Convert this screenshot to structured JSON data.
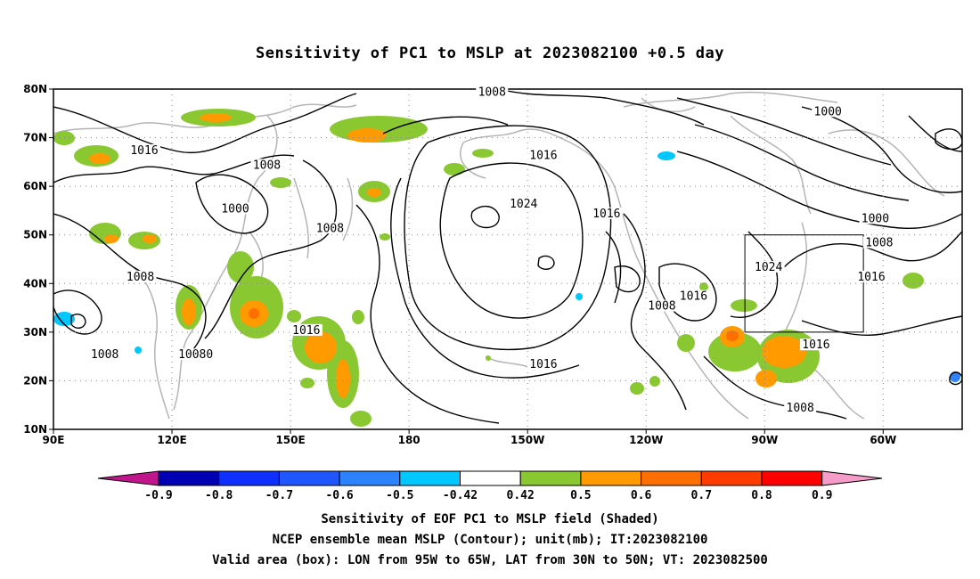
{
  "title": "Sensitivity of PC1 to MSLP at 2023082100 +0.5 day",
  "map": {
    "lat_ticks": [
      {
        "value": 80,
        "label": "80N"
      },
      {
        "value": 70,
        "label": "70N"
      },
      {
        "value": 60,
        "label": "60N"
      },
      {
        "value": 50,
        "label": "50N"
      },
      {
        "value": 40,
        "label": "40N"
      },
      {
        "value": 30,
        "label": "30N"
      },
      {
        "value": 20,
        "label": "20N"
      },
      {
        "value": 10,
        "label": "10N"
      }
    ],
    "lon_ticks": [
      {
        "value": 90,
        "label": "90E"
      },
      {
        "value": 120,
        "label": "120E"
      },
      {
        "value": 150,
        "label": "150E"
      },
      {
        "value": 180,
        "label": "180"
      },
      {
        "value": 210,
        "label": "150W"
      },
      {
        "value": 240,
        "label": "120W"
      },
      {
        "value": 270,
        "label": "90W"
      },
      {
        "value": 300,
        "label": "60W"
      }
    ],
    "lon_range": [
      90,
      320
    ],
    "lat_range": [
      10,
      80
    ],
    "grid": "dotted",
    "valid_box": {
      "lon_min": 265,
      "lon_max": 295,
      "lat_min": 30,
      "lat_max": 50
    },
    "contour_labels": [
      {
        "text": "1008",
        "lon": 201,
        "lat": 79
      },
      {
        "text": "1000",
        "lon": 286,
        "lat": 75
      },
      {
        "text": "1016",
        "lon": 113,
        "lat": 67
      },
      {
        "text": "1008",
        "lon": 144,
        "lat": 64
      },
      {
        "text": "1016",
        "lon": 214,
        "lat": 66
      },
      {
        "text": "1024",
        "lon": 209,
        "lat": 56
      },
      {
        "text": "1016",
        "lon": 230,
        "lat": 54
      },
      {
        "text": "1000",
        "lon": 136,
        "lat": 55
      },
      {
        "text": "1000",
        "lon": 298,
        "lat": 53
      },
      {
        "text": "1008",
        "lon": 160,
        "lat": 51
      },
      {
        "text": "1008",
        "lon": 299,
        "lat": 48
      },
      {
        "text": "1024",
        "lon": 271,
        "lat": 43
      },
      {
        "text": "1016",
        "lon": 297,
        "lat": 41
      },
      {
        "text": "1008",
        "lon": 112,
        "lat": 41
      },
      {
        "text": "1016",
        "lon": 252,
        "lat": 37
      },
      {
        "text": "1008",
        "lon": 244,
        "lat": 35
      },
      {
        "text": "1016",
        "lon": 154,
        "lat": 30
      },
      {
        "text": "1008",
        "lon": 103,
        "lat": 25
      },
      {
        "text": "10080",
        "lon": 126,
        "lat": 25
      },
      {
        "text": "1016",
        "lon": 283,
        "lat": 27
      },
      {
        "text": "1016",
        "lon": 214,
        "lat": 23
      },
      {
        "text": "1008",
        "lon": 279,
        "lat": 14
      }
    ]
  },
  "colorbar": {
    "levels": [
      "-0.9",
      "-0.8",
      "-0.7",
      "-0.6",
      "-0.5",
      "-0.42",
      "0.42",
      "0.5",
      "0.6",
      "0.7",
      "0.8",
      "0.9"
    ],
    "colors": {
      "below": "#c0158b",
      "bins": [
        "#0000b4",
        "#0d2fff",
        "#1f56ff",
        "#2c82ff",
        "#00c8ff",
        "#ffffff",
        "#8ac832",
        "#ff9b00",
        "#ff6e00",
        "#ff3c00",
        "#ff0000"
      ],
      "above": "#f59cc8"
    }
  },
  "shading": {
    "green": "#8ac832",
    "orange": "#ff9b00",
    "cyan": "#00c8ff",
    "blue": "#2c82ff"
  },
  "captions": {
    "line1": "Sensitivity of EOF PC1 to MSLP field (Shaded)",
    "line2": "NCEP ensemble mean MSLP (Contour); unit(mb); IT:2023082100",
    "line3": "Valid area (box): LON from 95W to 65W, LAT from 30N to 50N; VT: 2023082500"
  }
}
